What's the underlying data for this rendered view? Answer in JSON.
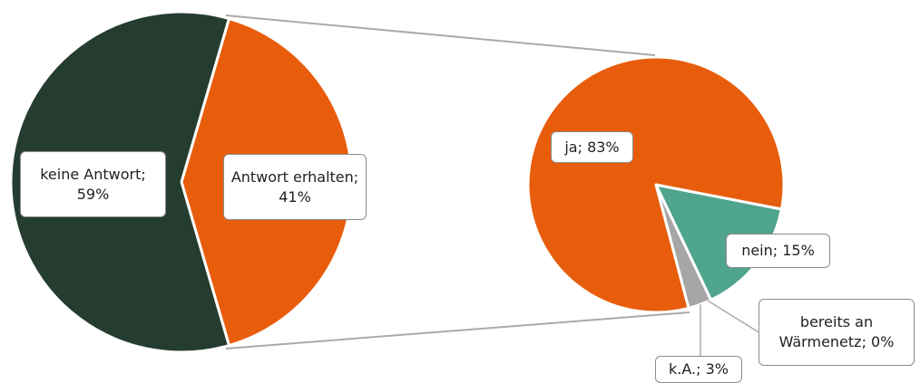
{
  "chart_data": [
    {
      "type": "pie",
      "values": [
        59,
        41
      ],
      "value_labels": [
        "keine Antwort; 59%",
        "Antwort erhalten; 41%"
      ],
      "colors": [
        "#253d30",
        "#e85d0c"
      ]
    },
    {
      "type": "pie",
      "values": [
        83,
        15,
        0,
        3
      ],
      "value_labels": [
        "ja; 83%",
        "nein; 15%",
        "bereits an Wärmenetz; 0%",
        "k.A.; 3%"
      ],
      "colors": [
        "#e85d0c",
        "#4fa48e",
        "#253d30",
        "#a6a6a6"
      ]
    }
  ]
}
